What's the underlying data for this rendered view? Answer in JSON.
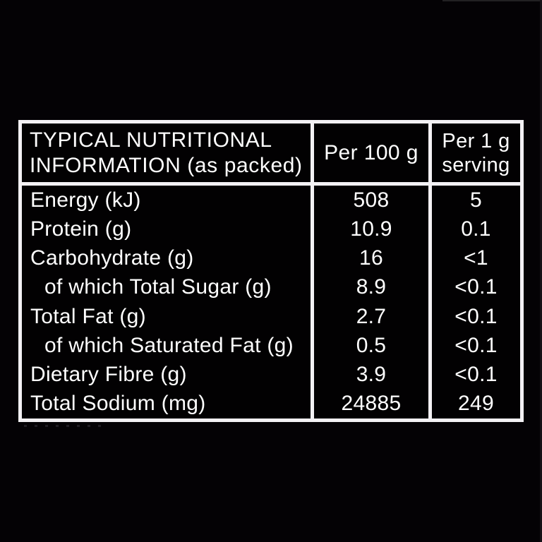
{
  "page": {
    "background_color": "#040205"
  },
  "nutrition_label": {
    "line_color": "#f3f1f4",
    "text_color": "#ffffff",
    "header": {
      "title_line1": "TYPICAL NUTRITIONAL",
      "title_line2": "INFORMATION (as packed)",
      "per_100g": "Per 100 g",
      "per_serving_line1": "Per 1 g",
      "per_serving_line2": "serving"
    },
    "rows": [
      {
        "label": "Energy (kJ)",
        "per_100g": "508",
        "per_serving": "5",
        "indent": false
      },
      {
        "label": "Protein (g)",
        "per_100g": "10.9",
        "per_serving": "0.1",
        "indent": false
      },
      {
        "label": "Carbohydrate (g)",
        "per_100g": "16",
        "per_serving": "<1",
        "indent": false
      },
      {
        "label": "of which Total Sugar (g)",
        "per_100g": "8.9",
        "per_serving": "<0.1",
        "indent": true
      },
      {
        "label": "Total Fat (g)",
        "per_100g": "2.7",
        "per_serving": "<0.1",
        "indent": false
      },
      {
        "label": "of which Saturated Fat (g)",
        "per_100g": "0.5",
        "per_serving": "<0.1",
        "indent": true
      },
      {
        "label": "Dietary Fibre (g)",
        "per_100g": "3.9",
        "per_serving": "<0.1",
        "indent": false
      },
      {
        "label": "Total Sodium (mg)",
        "per_100g": "24885",
        "per_serving": "249",
        "indent": false
      }
    ]
  }
}
